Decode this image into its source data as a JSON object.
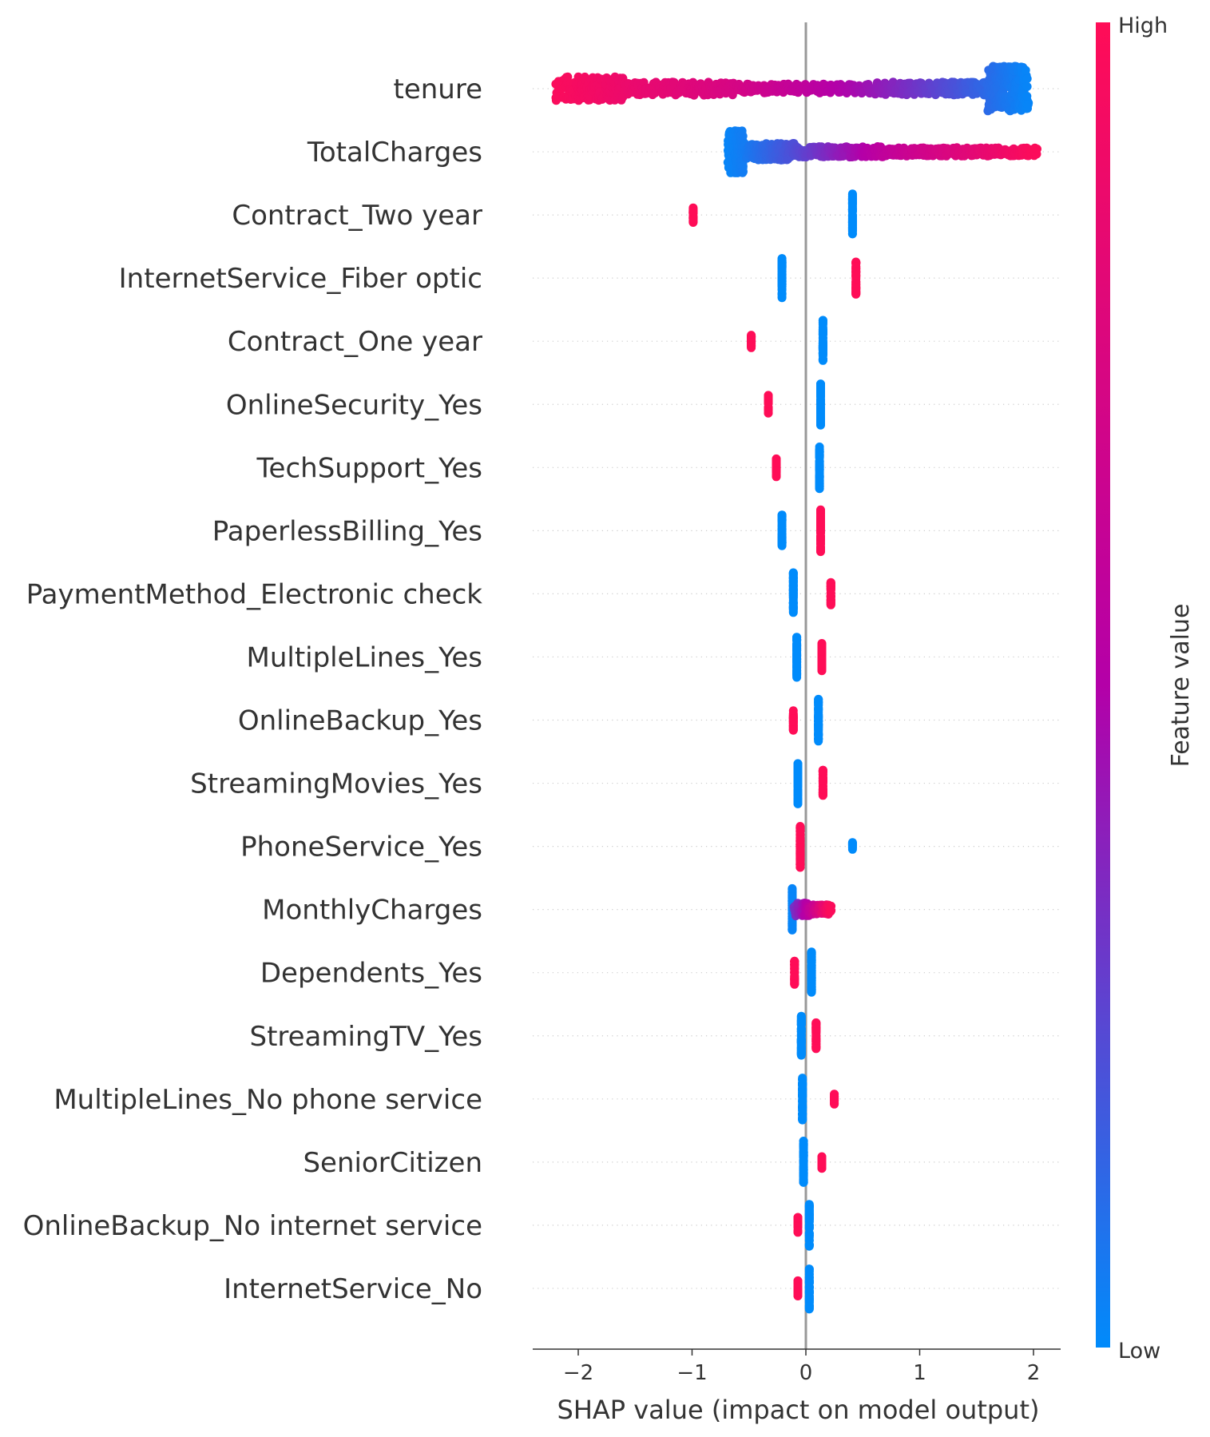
{
  "chart_data": {
    "type": "scatter",
    "subtype": "shap-beeswarm",
    "title": "",
    "xlabel": "SHAP value (impact on model output)",
    "ylabel": "",
    "xlim": [
      -2.4,
      2.25
    ],
    "xticks": [
      -2,
      -1,
      0,
      1,
      2
    ],
    "xtick_labels": [
      "−2",
      "−1",
      "0",
      "1",
      "2"
    ],
    "grid": false,
    "colorbar": {
      "label": "Feature value",
      "high_label": "High",
      "low_label": "Low",
      "high_color": "#ff0d57",
      "mid_color": "#b400a8",
      "low_color": "#008bfb"
    },
    "features": [
      {
        "name": "tenure",
        "segments": [
          {
            "x0": -2.2,
            "x1": -1.6,
            "f0": 0.97,
            "f1": 0.88,
            "h": 0.45,
            "n": 180
          },
          {
            "x0": -1.6,
            "x1": -0.6,
            "f0": 0.88,
            "f1": 0.72,
            "h": 0.25,
            "n": 160
          },
          {
            "x0": -0.6,
            "x1": 0.6,
            "f0": 0.72,
            "f1": 0.42,
            "h": 0.18,
            "n": 140
          },
          {
            "x0": 0.6,
            "x1": 1.6,
            "f0": 0.42,
            "f1": 0.12,
            "h": 0.25,
            "n": 170
          },
          {
            "x0": 1.6,
            "x1": 1.95,
            "f0": 0.12,
            "f1": 0.02,
            "h": 0.85,
            "n": 260
          }
        ]
      },
      {
        "name": "TotalCharges",
        "segments": [
          {
            "x0": -0.68,
            "x1": -0.55,
            "f0": 0.02,
            "f1": 0.05,
            "h": 0.8,
            "n": 300
          },
          {
            "x0": -0.55,
            "x1": -0.1,
            "f0": 0.05,
            "f1": 0.22,
            "h": 0.32,
            "n": 220
          },
          {
            "x0": -0.1,
            "x1": 0.7,
            "f0": 0.22,
            "f1": 0.58,
            "h": 0.2,
            "n": 180
          },
          {
            "x0": 0.7,
            "x1": 2.03,
            "f0": 0.58,
            "f1": 0.98,
            "h": 0.16,
            "n": 260
          }
        ]
      },
      {
        "name": "Contract_Two year",
        "segments": [
          {
            "x0": -0.99,
            "x1": -0.99,
            "f0": 1,
            "f1": 1,
            "h": 0.3,
            "n": 25
          },
          {
            "x0": 0.41,
            "x1": 0.41,
            "f0": 0,
            "f1": 0,
            "h": 0.8,
            "n": 60
          }
        ]
      },
      {
        "name": "InternetService_Fiber optic",
        "segments": [
          {
            "x0": -0.21,
            "x1": -0.21,
            "f0": 0,
            "f1": 0,
            "h": 0.75,
            "n": 60
          },
          {
            "x0": 0.44,
            "x1": 0.44,
            "f0": 1,
            "f1": 1,
            "h": 0.62,
            "n": 50
          }
        ]
      },
      {
        "name": "Contract_One year",
        "segments": [
          {
            "x0": -0.48,
            "x1": -0.48,
            "f0": 1,
            "f1": 1,
            "h": 0.25,
            "n": 20
          },
          {
            "x0": 0.15,
            "x1": 0.15,
            "f0": 0,
            "f1": 0,
            "h": 0.8,
            "n": 60
          }
        ]
      },
      {
        "name": "OnlineSecurity_Yes",
        "segments": [
          {
            "x0": -0.33,
            "x1": -0.33,
            "f0": 1,
            "f1": 1,
            "h": 0.35,
            "n": 25
          },
          {
            "x0": 0.13,
            "x1": 0.13,
            "f0": 0,
            "f1": 0,
            "h": 0.8,
            "n": 60
          }
        ]
      },
      {
        "name": "TechSupport_Yes",
        "segments": [
          {
            "x0": -0.26,
            "x1": -0.26,
            "f0": 1,
            "f1": 1,
            "h": 0.35,
            "n": 25
          },
          {
            "x0": 0.12,
            "x1": 0.12,
            "f0": 0,
            "f1": 0,
            "h": 0.8,
            "n": 60
          }
        ]
      },
      {
        "name": "PaperlessBilling_Yes",
        "segments": [
          {
            "x0": -0.21,
            "x1": -0.21,
            "f0": 0,
            "f1": 0,
            "h": 0.6,
            "n": 45
          },
          {
            "x0": 0.13,
            "x1": 0.13,
            "f0": 1,
            "f1": 1,
            "h": 0.8,
            "n": 60
          }
        ]
      },
      {
        "name": "PaymentMethod_Electronic check",
        "segments": [
          {
            "x0": -0.11,
            "x1": -0.11,
            "f0": 0,
            "f1": 0,
            "h": 0.8,
            "n": 60
          },
          {
            "x0": 0.22,
            "x1": 0.22,
            "f0": 1,
            "f1": 1,
            "h": 0.45,
            "n": 35
          }
        ]
      },
      {
        "name": "MultipleLines_Yes",
        "segments": [
          {
            "x0": -0.08,
            "x1": -0.08,
            "f0": 0,
            "f1": 0,
            "h": 0.8,
            "n": 60
          },
          {
            "x0": 0.14,
            "x1": 0.14,
            "f0": 1,
            "f1": 1,
            "h": 0.55,
            "n": 40
          }
        ]
      },
      {
        "name": "OnlineBackup_Yes",
        "segments": [
          {
            "x0": -0.11,
            "x1": -0.11,
            "f0": 1,
            "f1": 1,
            "h": 0.4,
            "n": 30
          },
          {
            "x0": 0.11,
            "x1": 0.11,
            "f0": 0,
            "f1": 0,
            "h": 0.8,
            "n": 60
          }
        ]
      },
      {
        "name": "StreamingMovies_Yes",
        "segments": [
          {
            "x0": -0.07,
            "x1": -0.07,
            "f0": 0,
            "f1": 0,
            "h": 0.8,
            "n": 60
          },
          {
            "x0": 0.15,
            "x1": 0.15,
            "f0": 1,
            "f1": 1,
            "h": 0.5,
            "n": 40
          }
        ]
      },
      {
        "name": "PhoneService_Yes",
        "segments": [
          {
            "x0": -0.05,
            "x1": -0.05,
            "f0": 1,
            "f1": 1,
            "h": 0.8,
            "n": 60
          },
          {
            "x0": 0.41,
            "x1": 0.41,
            "f0": 0,
            "f1": 0,
            "h": 0.15,
            "n": 10
          }
        ]
      },
      {
        "name": "MonthlyCharges",
        "segments": [
          {
            "x0": -0.12,
            "x1": -0.12,
            "f0": 0.02,
            "f1": 0.02,
            "h": 0.8,
            "n": 50
          },
          {
            "x0": -0.1,
            "x1": 0.05,
            "f0": 0.3,
            "f1": 0.6,
            "h": 0.25,
            "n": 80
          },
          {
            "x0": 0.05,
            "x1": 0.22,
            "f0": 0.6,
            "f1": 0.98,
            "h": 0.18,
            "n": 80
          }
        ]
      },
      {
        "name": "Dependents_Yes",
        "segments": [
          {
            "x0": -0.1,
            "x1": -0.1,
            "f0": 1,
            "f1": 1,
            "h": 0.45,
            "n": 35
          },
          {
            "x0": 0.05,
            "x1": 0.05,
            "f0": 0,
            "f1": 0,
            "h": 0.8,
            "n": 60
          }
        ]
      },
      {
        "name": "StreamingTV_Yes",
        "segments": [
          {
            "x0": -0.04,
            "x1": -0.04,
            "f0": 0,
            "f1": 0,
            "h": 0.8,
            "n": 60
          },
          {
            "x0": 0.09,
            "x1": 0.09,
            "f0": 1,
            "f1": 1,
            "h": 0.5,
            "n": 40
          }
        ]
      },
      {
        "name": "MultipleLines_No phone service",
        "segments": [
          {
            "x0": -0.03,
            "x1": -0.03,
            "f0": 0,
            "f1": 0,
            "h": 0.8,
            "n": 60
          },
          {
            "x0": 0.25,
            "x1": 0.25,
            "f0": 1,
            "f1": 1,
            "h": 0.2,
            "n": 15
          }
        ]
      },
      {
        "name": "SeniorCitizen",
        "segments": [
          {
            "x0": -0.02,
            "x1": -0.02,
            "f0": 0,
            "f1": 0,
            "h": 0.8,
            "n": 60
          },
          {
            "x0": 0.14,
            "x1": 0.14,
            "f0": 1,
            "f1": 1,
            "h": 0.25,
            "n": 20
          }
        ]
      },
      {
        "name": "OnlineBackup_No internet service",
        "segments": [
          {
            "x0": -0.07,
            "x1": -0.07,
            "f0": 1,
            "f1": 1,
            "h": 0.3,
            "n": 25
          },
          {
            "x0": 0.03,
            "x1": 0.03,
            "f0": 0,
            "f1": 0,
            "h": 0.8,
            "n": 60
          }
        ]
      },
      {
        "name": "InternetService_No",
        "segments": [
          {
            "x0": -0.07,
            "x1": -0.07,
            "f0": 1,
            "f1": 1,
            "h": 0.3,
            "n": 25
          },
          {
            "x0": 0.03,
            "x1": 0.03,
            "f0": 0,
            "f1": 0,
            "h": 0.8,
            "n": 60
          }
        ]
      }
    ]
  }
}
